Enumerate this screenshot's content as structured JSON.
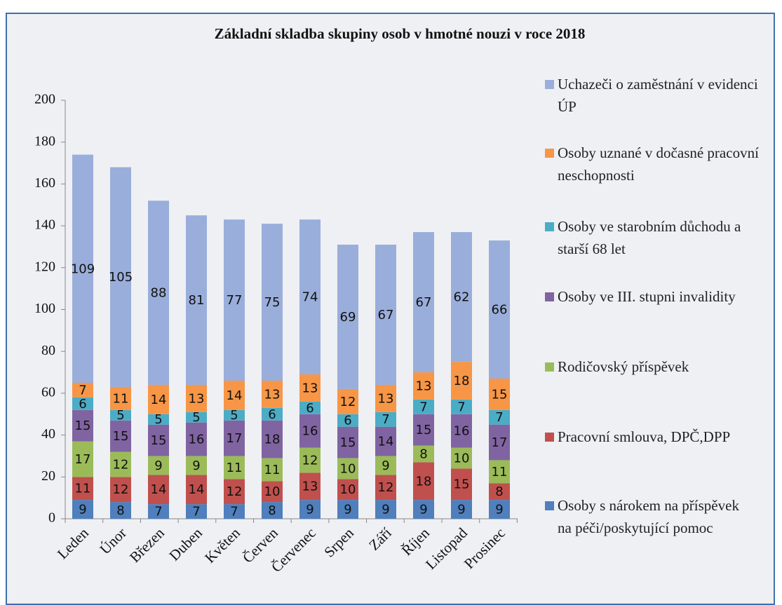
{
  "chart_data": {
    "type": "stacked_bar",
    "title": "Základní skladba skupiny osob v hmotné nouzi v roce 2018",
    "categories": [
      "Leden",
      "Únor",
      "Březen",
      "Duben",
      "Květen",
      "Červen",
      "Červenec",
      "Srpen",
      "Září",
      "Říjen",
      "Listopad",
      "Prosinec"
    ],
    "series": [
      {
        "name": "Osoby s nárokem na příspěvek na péči/poskytující pomoc",
        "color": "#4f7fbc",
        "values": [
          9,
          8,
          7,
          7,
          7,
          8,
          9,
          9,
          9,
          9,
          9,
          9
        ]
      },
      {
        "name": "Pracovní smlouva, DPČ,DPP",
        "color": "#c0504d",
        "values": [
          11,
          12,
          14,
          14,
          12,
          10,
          13,
          10,
          12,
          18,
          15,
          8
        ]
      },
      {
        "name": "Rodičovský příspěvek",
        "color": "#9bbb59",
        "values": [
          17,
          12,
          9,
          9,
          11,
          11,
          12,
          10,
          9,
          8,
          10,
          11
        ]
      },
      {
        "name": "Osoby ve III. stupni invalidity",
        "color": "#8064a2",
        "values": [
          15,
          15,
          15,
          16,
          17,
          18,
          16,
          15,
          14,
          15,
          16,
          17
        ]
      },
      {
        "name": "Osoby ve starobním důchodu a starší 68 let",
        "color": "#4bacc6",
        "values": [
          6,
          5,
          5,
          5,
          5,
          6,
          6,
          6,
          7,
          7,
          7,
          7
        ]
      },
      {
        "name": "Osoby uznané v dočasné pracovní neschopnosti",
        "color": "#f79646",
        "values": [
          7,
          11,
          14,
          13,
          14,
          13,
          13,
          12,
          13,
          13,
          18,
          15
        ]
      },
      {
        "name": "Uchazeči o zaměstnání v evidenci ÚP",
        "color": "#9aaedb",
        "values": [
          109,
          105,
          88,
          81,
          77,
          75,
          74,
          69,
          67,
          67,
          62,
          66
        ]
      }
    ],
    "ylim": [
      0,
      200
    ],
    "yticks": [
      0,
      20,
      40,
      60,
      80,
      100,
      120,
      140,
      160,
      180,
      200
    ],
    "grid": false
  }
}
